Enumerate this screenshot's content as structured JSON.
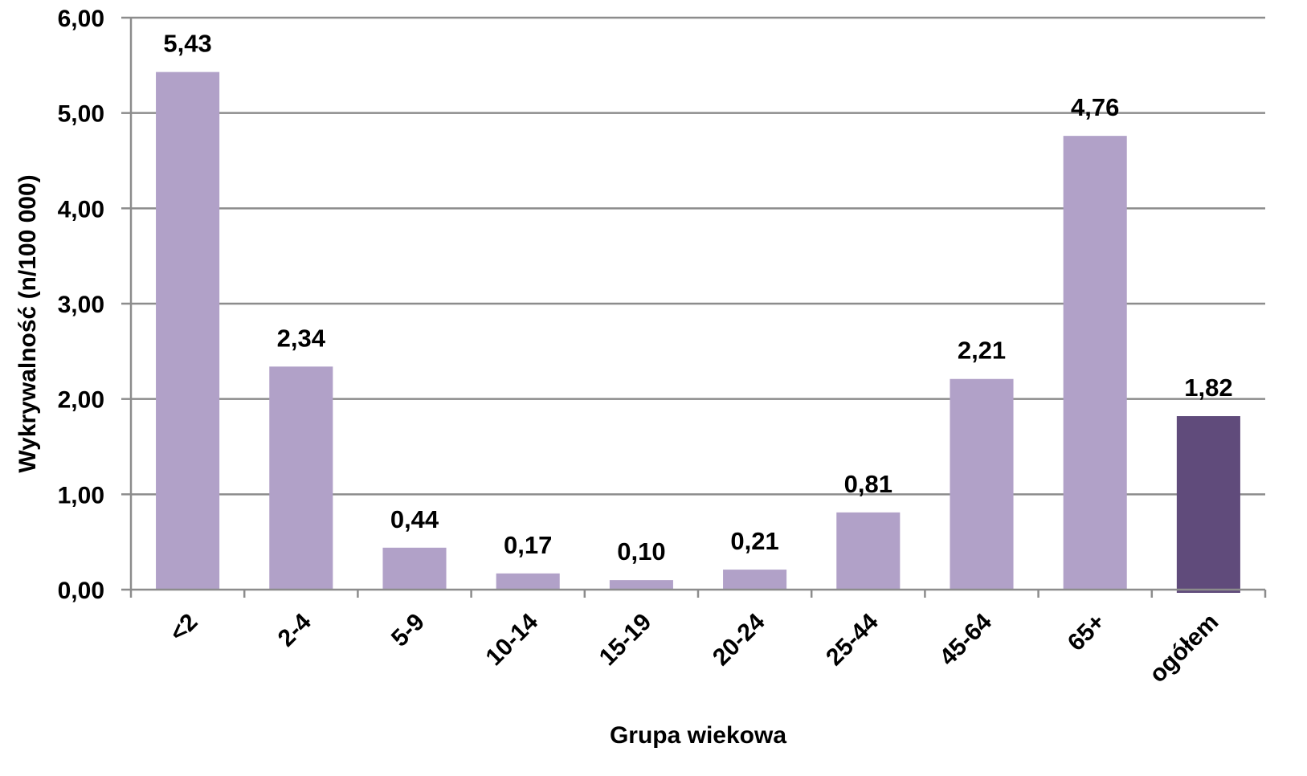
{
  "chart_data": {
    "type": "bar",
    "title": "",
    "xlabel": "Grupa wiekowa",
    "ylabel": "Wykrywalność  (n/100 000)",
    "ylim": [
      0,
      6
    ],
    "yticks": [
      0,
      1,
      2,
      3,
      4,
      5,
      6
    ],
    "ytick_labels": [
      "0,00",
      "1,00",
      "2,00",
      "3,00",
      "4,00",
      "5,00",
      "6,00"
    ],
    "grid": true,
    "legend": "none",
    "categories": [
      "<2",
      "2-4",
      "5-9",
      "10-14",
      "15-19",
      "20-24",
      "25-44",
      "45-64",
      "65+",
      "ogółem"
    ],
    "values": [
      5.43,
      2.34,
      0.44,
      0.17,
      0.1,
      0.21,
      0.81,
      2.21,
      4.76,
      1.82
    ],
    "value_labels": [
      "5,43",
      "2,34",
      "0,44",
      "0,17",
      "0,10",
      "0,21",
      "0,81",
      "2,21",
      "4,76",
      "1,82"
    ],
    "colors": {
      "bar": "#b1a1c8",
      "highlight_bar": "#604b7b",
      "grid": "#8c8c8c",
      "axis": "#8c8c8c"
    },
    "highlight_category": "ogółem"
  }
}
